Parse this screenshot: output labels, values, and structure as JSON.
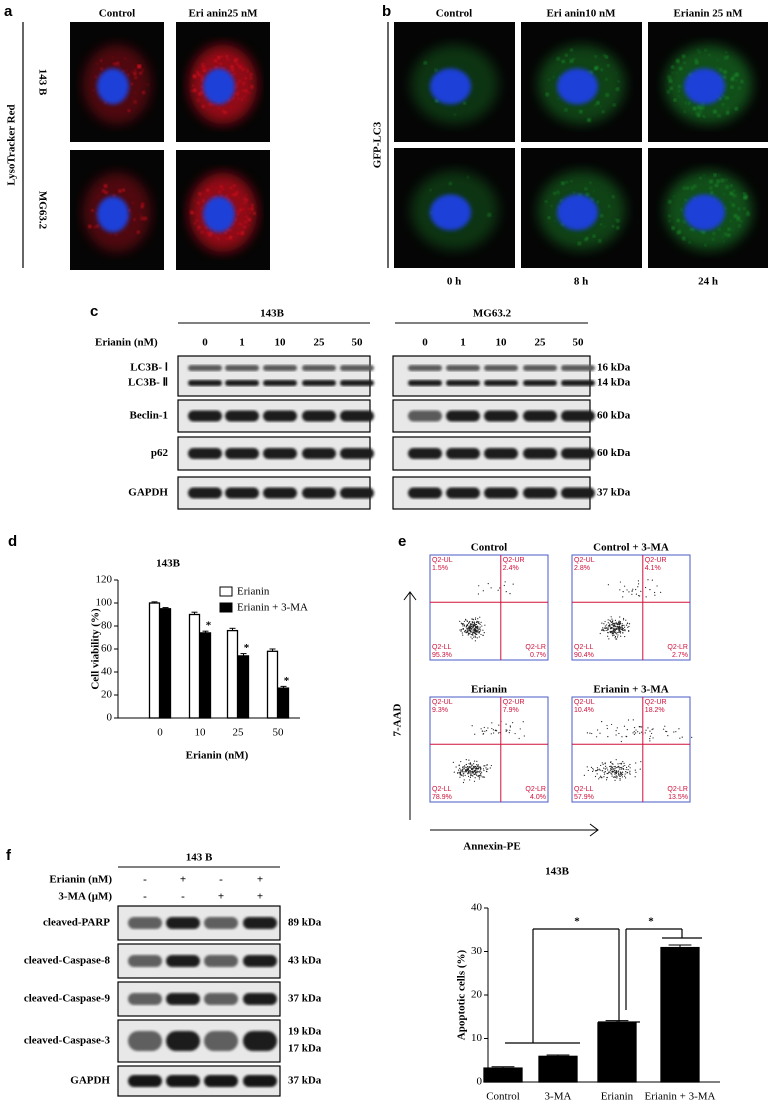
{
  "panel_labels": [
    "a",
    "b",
    "c",
    "d",
    "e",
    "f"
  ],
  "panel_a": {
    "columns": [
      "Control",
      "Eri anin25 nM"
    ],
    "rows": [
      "143 B",
      "MG63.2"
    ],
    "stain": "LysoTracker Red"
  },
  "panel_b": {
    "columns": [
      "Control",
      "Eri anin10 nM",
      "Erianin 25 nM"
    ],
    "stain": "GFP-LC3",
    "times": [
      "0 h",
      "8 h",
      "24 h"
    ]
  },
  "panel_c": {
    "groups": [
      "143B",
      "MG63.2"
    ],
    "dose_label": "Erianin (nM)",
    "doses": [
      "0",
      "1",
      "10",
      "25",
      "50"
    ],
    "blots": [
      {
        "labels": [
          "LC3B- Ⅰ",
          "LC3B- Ⅱ"
        ],
        "sizes": [
          "16 kDa",
          "14 kDa"
        ]
      },
      {
        "labels": [
          "Beclin-1"
        ],
        "sizes": [
          "60 kDa"
        ]
      },
      {
        "labels": [
          "p62"
        ],
        "sizes": [
          "60 kDa"
        ]
      },
      {
        "labels": [
          "GAPDH"
        ],
        "sizes": [
          "37 kDa"
        ]
      }
    ]
  },
  "panel_e": {
    "y_label": "7-AAD",
    "x_label": "Annexin-PE",
    "plots": [
      {
        "title": "Control",
        "quadrants": [
          {
            "name": "Q2-UL",
            "value": "1.5%"
          },
          {
            "name": "Q2-UR",
            "value": "2.4%"
          },
          {
            "name": "Q2-LL",
            "value": "95.3%"
          },
          {
            "name": "Q2-LR",
            "value": "0.7%"
          }
        ]
      },
      {
        "title": "Control + 3-MA",
        "quadrants": [
          {
            "name": "Q2-UL",
            "value": "2.8%"
          },
          {
            "name": "Q2-UR",
            "value": "4.1%"
          },
          {
            "name": "Q2-LL",
            "value": "90.4%"
          },
          {
            "name": "Q2-LR",
            "value": "2.7%"
          }
        ]
      },
      {
        "title": "Erianin",
        "quadrants": [
          {
            "name": "Q2-UL",
            "value": "9.3%"
          },
          {
            "name": "Q2-UR",
            "value": "7.9%"
          },
          {
            "name": "Q2-LL",
            "value": "78.9%"
          },
          {
            "name": "Q2-LR",
            "value": "4.0%"
          }
        ]
      },
      {
        "title": "Erianin + 3-MA",
        "quadrants": [
          {
            "name": "Q2-UL",
            "value": "10.4%"
          },
          {
            "name": "Q2-UR",
            "value": "18.2%"
          },
          {
            "name": "Q2-LL",
            "value": "57.9%"
          },
          {
            "name": "Q2-LR",
            "value": "13.5%"
          }
        ]
      }
    ]
  },
  "panel_f": {
    "title": "143 B",
    "treatments": [
      {
        "name": "Erianin (nM)",
        "signs": [
          "-",
          "+",
          "-",
          "+"
        ]
      },
      {
        "name": "3-MA (μM)",
        "signs": [
          "-",
          "-",
          "+",
          "+"
        ]
      }
    ],
    "blots": [
      {
        "labels": [
          "cleaved-PARP"
        ],
        "sizes": [
          "89 kDa"
        ]
      },
      {
        "labels": [
          "cleaved-Caspase-8"
        ],
        "sizes": [
          "43 kDa"
        ]
      },
      {
        "labels": [
          "cleaved-Caspase-9"
        ],
        "sizes": [
          "37 kDa"
        ]
      },
      {
        "labels": [
          "cleaved-Caspase-3"
        ],
        "sizes": [
          "19 kDa",
          "17 kDa"
        ]
      },
      {
        "labels": [
          "GAPDH"
        ],
        "sizes": [
          "37 kDa"
        ]
      }
    ]
  },
  "chart_data": [
    {
      "type": "bar",
      "title": "143B",
      "x_label": "Erianin (nM)",
      "y_label": "Cell viability (%)",
      "categories": [
        "0",
        "10",
        "25",
        "50"
      ],
      "series": [
        {
          "name": "Erianin",
          "color": "#ffffff",
          "values": [
            100,
            90,
            76,
            58
          ],
          "errors": [
            1,
            2,
            2,
            2
          ]
        },
        {
          "name": "Erianin + 3-MA",
          "color": "#000000",
          "values": [
            95,
            74,
            54,
            26
          ],
          "errors": [
            1,
            1.5,
            2,
            1.5
          ]
        }
      ],
      "annotations": [
        null,
        "*",
        "*",
        "*"
      ],
      "ylim": [
        0,
        120
      ],
      "yticks": [
        0,
        20,
        40,
        60,
        80,
        100,
        120
      ],
      "legend": "upper right"
    },
    {
      "type": "bar",
      "title": "143B",
      "y_label": "Apoptotic cells (%)",
      "categories": [
        "Control",
        "3-MA",
        "Erianin",
        "Erianin + 3-MA"
      ],
      "values": [
        3.2,
        5.9,
        13.6,
        30.9
      ],
      "errors": [
        0.3,
        0.3,
        0.5,
        0.6
      ],
      "color": "#000000",
      "annotations": [
        "*",
        "*"
      ],
      "ylim": [
        0,
        40
      ],
      "yticks": [
        0,
        10,
        20,
        30,
        40
      ]
    }
  ]
}
